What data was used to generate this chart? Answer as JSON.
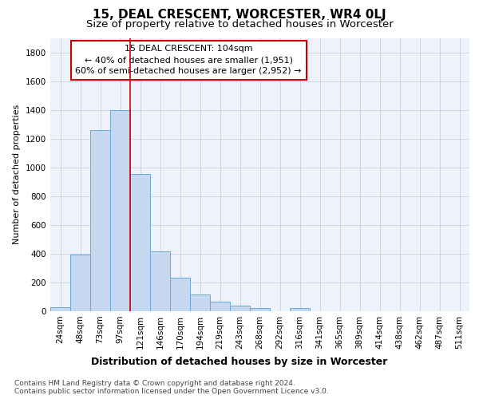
{
  "title1": "15, DEAL CRESCENT, WORCESTER, WR4 0LJ",
  "title2": "Size of property relative to detached houses in Worcester",
  "xlabel": "Distribution of detached houses by size in Worcester",
  "ylabel": "Number of detached properties",
  "categories": [
    "24sqm",
    "48sqm",
    "73sqm",
    "97sqm",
    "121sqm",
    "146sqm",
    "170sqm",
    "194sqm",
    "219sqm",
    "243sqm",
    "268sqm",
    "292sqm",
    "316sqm",
    "341sqm",
    "365sqm",
    "389sqm",
    "414sqm",
    "438sqm",
    "462sqm",
    "487sqm",
    "511sqm"
  ],
  "values": [
    25,
    395,
    1260,
    1400,
    955,
    415,
    235,
    115,
    65,
    40,
    20,
    0,
    20,
    0,
    0,
    0,
    0,
    0,
    0,
    0,
    0
  ],
  "bar_color": "#c5d8f0",
  "bar_edge_color": "#6aaad4",
  "grid_color": "#c8d0e0",
  "background_color": "#eef2fb",
  "vline_color": "#cc0000",
  "vline_pos": 3.5,
  "annotation_text": "15 DEAL CRESCENT: 104sqm\n← 40% of detached houses are smaller (1,951)\n60% of semi-detached houses are larger (2,952) →",
  "annotation_box_color": "#cc0000",
  "ylim": [
    0,
    1900
  ],
  "yticks": [
    0,
    200,
    400,
    600,
    800,
    1000,
    1200,
    1400,
    1600,
    1800
  ],
  "footnote": "Contains HM Land Registry data © Crown copyright and database right 2024.\nContains public sector information licensed under the Open Government Licence v3.0.",
  "title1_fontsize": 11,
  "title2_fontsize": 9.5,
  "xlabel_fontsize": 9,
  "ylabel_fontsize": 8,
  "tick_fontsize": 7.5,
  "annotation_fontsize": 8,
  "footnote_fontsize": 6.5
}
